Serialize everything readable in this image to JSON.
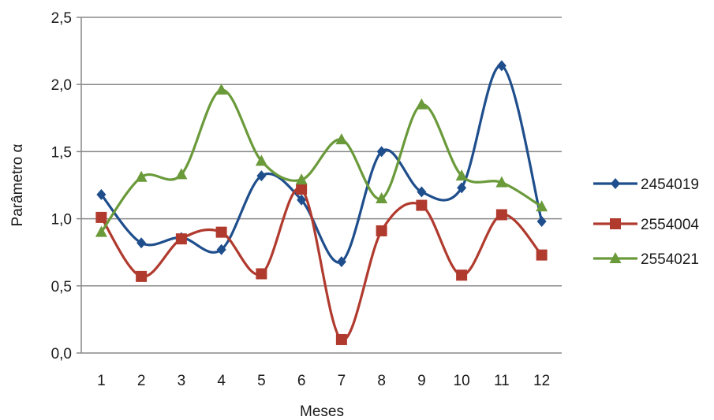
{
  "chart_data": {
    "type": "line",
    "smooth": true,
    "xlabel": "Meses",
    "ylabel": "Parâmetro α",
    "categories": [
      "1",
      "2",
      "3",
      "4",
      "5",
      "6",
      "7",
      "8",
      "9",
      "10",
      "11",
      "12"
    ],
    "ylim": [
      0,
      2.5
    ],
    "yticks": [
      "0,0",
      "0,5",
      "1,0",
      "1,5",
      "2,0",
      "2,5"
    ],
    "grid": "horizontal",
    "legend_position": "right",
    "series": [
      {
        "name": "2454019",
        "marker": "diamond",
        "color": "#1f4e8c",
        "values": [
          1.18,
          0.82,
          0.86,
          0.77,
          1.32,
          1.14,
          0.68,
          1.5,
          1.2,
          1.23,
          2.14,
          0.98
        ]
      },
      {
        "name": "2554004",
        "marker": "square",
        "color": "#b03a2e",
        "values": [
          1.01,
          0.57,
          0.85,
          0.9,
          0.59,
          1.22,
          0.1,
          0.91,
          1.1,
          0.58,
          1.03,
          0.73
        ]
      },
      {
        "name": "2554021",
        "marker": "triangle",
        "color": "#6a9a3a",
        "values": [
          0.9,
          1.31,
          1.33,
          1.96,
          1.43,
          1.29,
          1.59,
          1.15,
          1.85,
          1.32,
          1.27,
          1.09
        ]
      }
    ]
  }
}
